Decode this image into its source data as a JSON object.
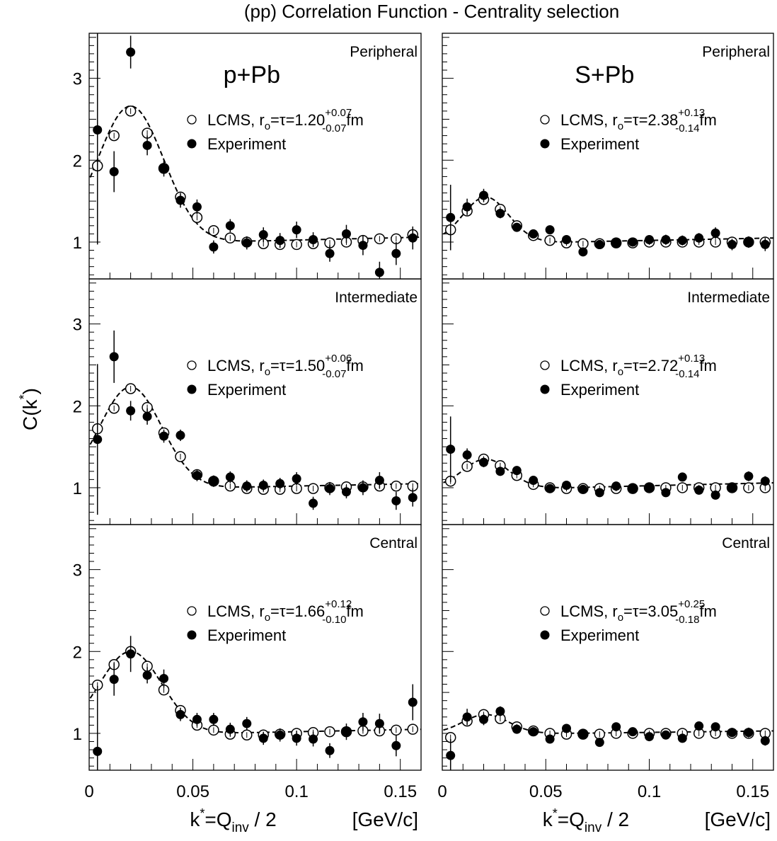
{
  "figure": {
    "title": "(pp) Correlation Function - Centrality selection",
    "ylabel": "C(k*)",
    "xlabel_left": "k*=Q",
    "xlabel_sub": "inv",
    "xlabel_right": " / 2",
    "xunit": "[GeV/c]"
  },
  "chart_data": [
    {
      "type": "scatter",
      "system": "p+Pb",
      "centrality": "Peripheral",
      "xlim": [
        0,
        0.16
      ],
      "ylim": [
        0.55,
        3.55
      ],
      "xticks": [
        0,
        0.05,
        0.1,
        0.15
      ],
      "yticks": [
        1,
        2,
        3
      ],
      "lcms_label": "LCMS, r",
      "lcms_sub": "o",
      "lcms_value": "=τ=1.20",
      "err_plus": "+0.07",
      "err_minus": "-0.07",
      "unit": "fm",
      "exp_label": "Experiment",
      "series": [
        {
          "name": "LCMS",
          "marker": "open",
          "x": [
            0.004,
            0.012,
            0.02,
            0.028,
            0.036,
            0.044,
            0.052,
            0.06,
            0.068,
            0.076,
            0.084,
            0.092,
            0.1,
            0.108,
            0.116,
            0.124,
            0.132,
            0.14,
            0.148,
            0.156
          ],
          "y": [
            1.93,
            2.3,
            2.6,
            2.33,
            1.9,
            1.55,
            1.3,
            1.14,
            1.05,
            1.0,
            0.98,
            0.97,
            0.97,
            0.98,
            0.99,
            1.0,
            1.02,
            1.04,
            1.04,
            1.09
          ]
        },
        {
          "name": "Experiment",
          "marker": "filled",
          "x": [
            0.004,
            0.012,
            0.02,
            0.028,
            0.036,
            0.044,
            0.052,
            0.06,
            0.068,
            0.076,
            0.084,
            0.092,
            0.1,
            0.108,
            0.116,
            0.124,
            0.132,
            0.14,
            0.148,
            0.156
          ],
          "y": [
            2.37,
            1.86,
            3.32,
            2.18,
            1.9,
            1.51,
            1.43,
            0.94,
            1.2,
            0.99,
            1.09,
            1.02,
            1.15,
            1.03,
            0.86,
            1.1,
            0.96,
            0.63,
            0.86,
            1.05
          ],
          "err": [
            1.4,
            0.25,
            0.2,
            0.12,
            0.1,
            0.09,
            0.09,
            0.08,
            0.08,
            0.08,
            0.09,
            0.09,
            0.1,
            0.09,
            0.1,
            0.11,
            0.12,
            0.13,
            0.14,
            0.14
          ]
        }
      ],
      "fit": {
        "A": 1.66,
        "mu": 0.02,
        "sigma": 0.016,
        "base": 1.0,
        "tail": 0.06
      }
    },
    {
      "type": "scatter",
      "system": "S+Pb",
      "centrality": "Peripheral",
      "xlim": [
        0,
        0.16
      ],
      "ylim": [
        0.55,
        3.55
      ],
      "xticks": [
        0,
        0.05,
        0.1,
        0.15
      ],
      "yticks": [],
      "lcms_label": "LCMS, r",
      "lcms_sub": "o",
      "lcms_value": "=τ=2.38",
      "err_plus": "+0.13",
      "err_minus": "-0.14",
      "unit": "fm",
      "exp_label": "Experiment",
      "series": [
        {
          "name": "LCMS",
          "marker": "open",
          "x": [
            0.004,
            0.012,
            0.02,
            0.028,
            0.036,
            0.044,
            0.052,
            0.06,
            0.068,
            0.076,
            0.084,
            0.092,
            0.1,
            0.108,
            0.116,
            0.124,
            0.132,
            0.14,
            0.148,
            0.156
          ],
          "y": [
            1.15,
            1.38,
            1.52,
            1.4,
            1.2,
            1.08,
            1.02,
            0.99,
            0.98,
            0.98,
            0.99,
            0.99,
            1.0,
            1.0,
            1.0,
            1.0,
            1.0,
            1.0,
            1.0,
            1.0
          ],
          "r_err": 0.015
        },
        {
          "name": "Experiment",
          "marker": "filled",
          "x": [
            0.004,
            0.012,
            0.02,
            0.028,
            0.036,
            0.044,
            0.052,
            0.06,
            0.068,
            0.076,
            0.084,
            0.092,
            0.1,
            0.108,
            0.116,
            0.124,
            0.132,
            0.14,
            0.148,
            0.156
          ],
          "y": [
            1.3,
            1.43,
            1.57,
            1.35,
            1.18,
            1.1,
            1.15,
            1.03,
            0.88,
            0.97,
            0.99,
            1.0,
            1.03,
            1.03,
            1.02,
            1.05,
            1.11,
            0.97,
            1.0,
            0.97
          ],
          "err": [
            0.4,
            0.1,
            0.08,
            0.06,
            0.05,
            0.05,
            0.05,
            0.05,
            0.05,
            0.05,
            0.05,
            0.05,
            0.05,
            0.06,
            0.06,
            0.06,
            0.07,
            0.07,
            0.07,
            0.08
          ]
        }
      ],
      "fit": {
        "A": 0.55,
        "mu": 0.021,
        "sigma": 0.011,
        "base": 1.0,
        "tail": 0.05
      }
    },
    {
      "type": "scatter",
      "system": "",
      "centrality": "Intermediate",
      "xlim": [
        0,
        0.16
      ],
      "ylim": [
        0.55,
        3.55
      ],
      "xticks": [
        0,
        0.05,
        0.1,
        0.15
      ],
      "yticks": [
        1,
        2,
        3
      ],
      "lcms_label": "LCMS, r",
      "lcms_sub": "o",
      "lcms_value": "=τ=1.50",
      "err_plus": "+0.06",
      "err_minus": "-0.07",
      "unit": "fm",
      "exp_label": "Experiment",
      "series": [
        {
          "name": "LCMS",
          "marker": "open",
          "x": [
            0.004,
            0.012,
            0.02,
            0.028,
            0.036,
            0.044,
            0.052,
            0.06,
            0.068,
            0.076,
            0.084,
            0.092,
            0.1,
            0.108,
            0.116,
            0.124,
            0.132,
            0.14,
            0.148,
            0.156
          ],
          "y": [
            1.72,
            1.97,
            2.21,
            1.98,
            1.67,
            1.38,
            1.16,
            1.08,
            1.02,
            0.99,
            0.98,
            0.98,
            0.99,
            0.99,
            1.0,
            1.01,
            1.01,
            1.02,
            1.02,
            1.02
          ]
        },
        {
          "name": "Experiment",
          "marker": "filled",
          "x": [
            0.004,
            0.012,
            0.02,
            0.028,
            0.036,
            0.044,
            0.052,
            0.06,
            0.068,
            0.076,
            0.084,
            0.092,
            0.1,
            0.108,
            0.116,
            0.124,
            0.132,
            0.14,
            0.148,
            0.156
          ],
          "y": [
            1.59,
            2.6,
            1.94,
            1.87,
            1.63,
            1.64,
            1.15,
            1.08,
            1.13,
            1.02,
            1.03,
            1.05,
            1.11,
            0.81,
            0.99,
            0.95,
            1.0,
            1.09,
            0.84,
            0.88
          ],
          "err": [
            0.92,
            0.32,
            0.12,
            0.1,
            0.08,
            0.07,
            0.07,
            0.07,
            0.07,
            0.07,
            0.07,
            0.07,
            0.08,
            0.08,
            0.08,
            0.08,
            0.09,
            0.1,
            0.11,
            0.11
          ]
        }
      ],
      "fit": {
        "A": 1.23,
        "mu": 0.02,
        "sigma": 0.015,
        "base": 1.0,
        "tail": 0.05
      }
    },
    {
      "type": "scatter",
      "system": "",
      "centrality": "Intermediate",
      "xlim": [
        0,
        0.16
      ],
      "ylim": [
        0.55,
        3.55
      ],
      "xticks": [
        0,
        0.05,
        0.1,
        0.15
      ],
      "yticks": [],
      "lcms_label": "LCMS, r",
      "lcms_sub": "o",
      "lcms_value": "=τ=2.72",
      "err_plus": "+0.13",
      "err_minus": "-0.14",
      "unit": "fm",
      "exp_label": "Experiment",
      "series": [
        {
          "name": "LCMS",
          "marker": "open",
          "x": [
            0.004,
            0.012,
            0.02,
            0.028,
            0.036,
            0.044,
            0.052,
            0.06,
            0.068,
            0.076,
            0.084,
            0.092,
            0.1,
            0.108,
            0.116,
            0.124,
            0.132,
            0.14,
            0.148,
            0.156
          ],
          "y": [
            1.08,
            1.26,
            1.35,
            1.27,
            1.15,
            1.04,
            1.0,
            0.99,
            0.99,
            0.99,
            0.99,
            0.99,
            1.0,
            1.0,
            1.0,
            1.0,
            1.0,
            1.0,
            1.0,
            1.0
          ],
          "r_err": 0.015
        },
        {
          "name": "Experiment",
          "marker": "filled",
          "x": [
            0.004,
            0.012,
            0.02,
            0.028,
            0.036,
            0.044,
            0.052,
            0.06,
            0.068,
            0.076,
            0.084,
            0.092,
            0.1,
            0.108,
            0.116,
            0.124,
            0.132,
            0.14,
            0.148,
            0.156
          ],
          "y": [
            1.47,
            1.4,
            1.31,
            1.2,
            1.21,
            1.09,
            0.99,
            1.03,
            0.98,
            0.94,
            1.02,
            0.99,
            1.0,
            0.94,
            1.13,
            0.97,
            0.91,
            1.0,
            1.14,
            1.08
          ],
          "err": [
            0.4,
            0.08,
            0.06,
            0.05,
            0.04,
            0.04,
            0.04,
            0.04,
            0.04,
            0.04,
            0.04,
            0.04,
            0.04,
            0.04,
            0.05,
            0.05,
            0.05,
            0.05,
            0.06,
            0.06
          ]
        }
      ],
      "fit": {
        "A": 0.35,
        "mu": 0.021,
        "sigma": 0.011,
        "base": 1.0,
        "tail": 0.06
      }
    },
    {
      "type": "scatter",
      "system": "",
      "centrality": "Central",
      "xlim": [
        0,
        0.16
      ],
      "ylim": [
        0.55,
        3.55
      ],
      "xticks": [
        0,
        0.05,
        0.1,
        0.15
      ],
      "yticks": [
        1,
        2,
        3
      ],
      "lcms_label": "LCMS, r",
      "lcms_sub": "o",
      "lcms_value": "=τ=1.66",
      "err_plus": "+0.12",
      "err_minus": "-0.10",
      "unit": "fm",
      "exp_label": "Experiment",
      "series": [
        {
          "name": "LCMS",
          "marker": "open",
          "x": [
            0.004,
            0.012,
            0.02,
            0.028,
            0.036,
            0.044,
            0.052,
            0.06,
            0.068,
            0.076,
            0.084,
            0.092,
            0.1,
            0.108,
            0.116,
            0.124,
            0.132,
            0.14,
            0.148,
            0.156
          ],
          "y": [
            1.59,
            1.84,
            2.0,
            1.82,
            1.53,
            1.28,
            1.1,
            1.04,
            0.99,
            0.98,
            0.98,
            0.99,
            1.0,
            1.01,
            1.02,
            1.02,
            1.03,
            1.03,
            1.04,
            1.05
          ]
        },
        {
          "name": "Experiment",
          "marker": "filled",
          "x": [
            0.004,
            0.012,
            0.02,
            0.028,
            0.036,
            0.044,
            0.052,
            0.06,
            0.068,
            0.076,
            0.084,
            0.092,
            0.1,
            0.108,
            0.116,
            0.124,
            0.132,
            0.14,
            0.148,
            0.156
          ],
          "y": [
            0.78,
            1.66,
            1.97,
            1.71,
            1.67,
            1.23,
            1.17,
            1.17,
            1.05,
            1.12,
            0.94,
            0.98,
            0.94,
            0.93,
            0.79,
            1.02,
            1.14,
            1.12,
            0.85,
            1.38
          ],
          "err": [
            0.8,
            0.2,
            0.22,
            0.1,
            0.11,
            0.08,
            0.08,
            0.08,
            0.08,
            0.08,
            0.08,
            0.08,
            0.09,
            0.09,
            0.09,
            0.1,
            0.11,
            0.12,
            0.13,
            0.22
          ]
        }
      ],
      "fit": {
        "A": 1.0,
        "mu": 0.02,
        "sigma": 0.015,
        "base": 1.0,
        "tail": 0.05
      }
    },
    {
      "type": "scatter",
      "system": "",
      "centrality": "Central",
      "xlim": [
        0,
        0.16
      ],
      "ylim": [
        0.55,
        3.55
      ],
      "xticks": [
        0,
        0.05,
        0.1,
        0.15
      ],
      "yticks": [],
      "lcms_label": "LCMS, r",
      "lcms_sub": "o",
      "lcms_value": "=τ=3.05",
      "err_plus": "+0.25",
      "err_minus": "-0.18",
      "unit": "fm",
      "exp_label": "Experiment",
      "series": [
        {
          "name": "LCMS",
          "marker": "open",
          "x": [
            0.004,
            0.012,
            0.02,
            0.028,
            0.036,
            0.044,
            0.052,
            0.06,
            0.068,
            0.076,
            0.084,
            0.092,
            0.1,
            0.108,
            0.116,
            0.124,
            0.132,
            0.14,
            0.148,
            0.156
          ],
          "y": [
            0.95,
            1.15,
            1.23,
            1.18,
            1.08,
            1.03,
            1.0,
            0.99,
            0.99,
            0.99,
            1.0,
            1.0,
            1.0,
            1.0,
            1.0,
            1.0,
            1.0,
            1.0,
            1.0,
            1.0
          ],
          "r_err": 0.015
        },
        {
          "name": "Experiment",
          "marker": "filled",
          "x": [
            0.004,
            0.012,
            0.02,
            0.028,
            0.036,
            0.044,
            0.052,
            0.06,
            0.068,
            0.076,
            0.084,
            0.092,
            0.1,
            0.108,
            0.116,
            0.124,
            0.132,
            0.14,
            0.148,
            0.156
          ],
          "y": [
            0.73,
            1.2,
            1.17,
            1.27,
            1.05,
            1.02,
            0.93,
            1.06,
            0.99,
            0.89,
            1.08,
            1.02,
            0.96,
            0.98,
            0.94,
            1.09,
            1.08,
            1.01,
            1.01,
            0.91
          ],
          "err": [
            0.2,
            0.1,
            0.07,
            0.06,
            0.04,
            0.04,
            0.04,
            0.04,
            0.04,
            0.04,
            0.04,
            0.04,
            0.04,
            0.04,
            0.05,
            0.05,
            0.05,
            0.05,
            0.06,
            0.06
          ]
        }
      ],
      "fit": {
        "A": 0.23,
        "mu": 0.021,
        "sigma": 0.011,
        "base": 1.0,
        "tail": 0.03
      }
    }
  ]
}
